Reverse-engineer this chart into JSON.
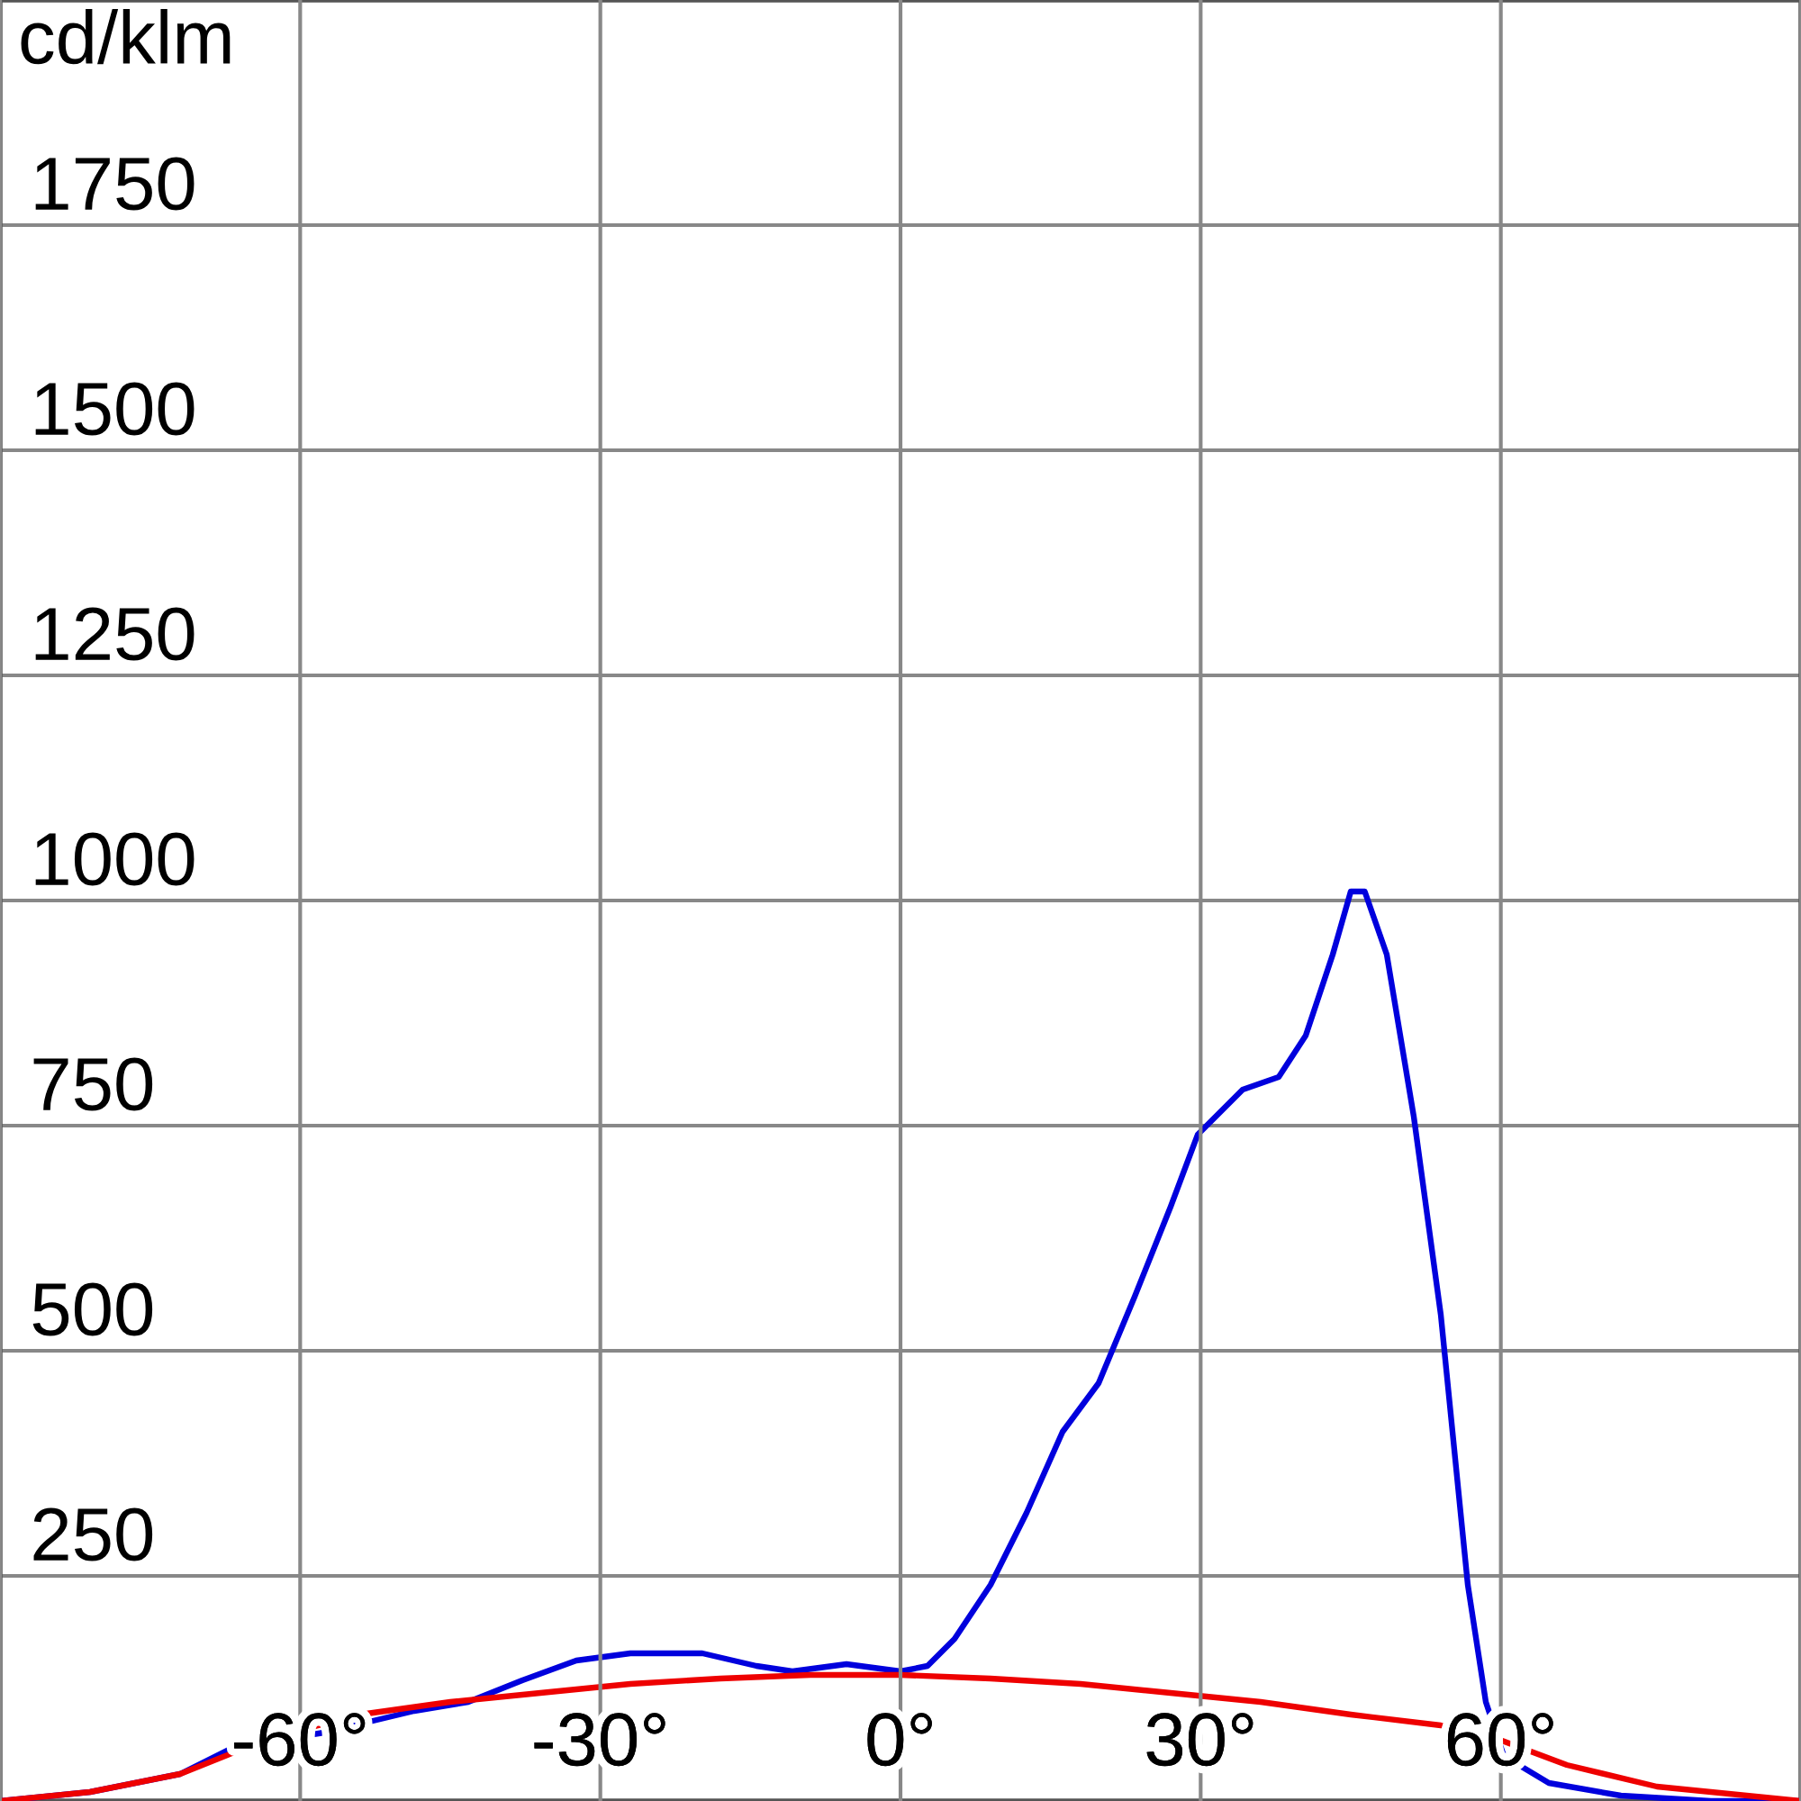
{
  "chart_data": {
    "type": "line",
    "ylabel": "cd/klm",
    "xlim": [
      -90,
      90
    ],
    "ylim": [
      0,
      2000
    ],
    "xticks": [
      {
        "value": -90,
        "label": null
      },
      {
        "value": -60,
        "label": "-60°"
      },
      {
        "value": -30,
        "label": "-30°"
      },
      {
        "value": 0,
        "label": "0°"
      },
      {
        "value": 30,
        "label": "30°"
      },
      {
        "value": 60,
        "label": "60°"
      },
      {
        "value": 90,
        "label": null
      }
    ],
    "yticks": [
      {
        "value": 0,
        "label": null
      },
      250,
      500,
      750,
      1000,
      1250,
      1500,
      1750,
      {
        "value": 2000,
        "label": null
      }
    ],
    "grid": true,
    "legend": false,
    "marker": "none",
    "line_style": "solid",
    "series": [
      {
        "color": "#0000dd",
        "x": [
          -90,
          -81,
          -72,
          -66.6,
          -57.6,
          -48.6,
          -43.2,
          -37.8,
          -32.4,
          -27,
          -19.8,
          -14.4,
          -10.8,
          -5.4,
          0,
          2.7,
          5.4,
          9,
          12.6,
          16.2,
          19.8,
          23.4,
          27,
          29.7,
          34.2,
          37.8,
          40.5,
          43.2,
          45,
          46.4,
          48.6,
          51.3,
          54,
          56.7,
          58.5,
          60.3,
          64.8,
          72,
          81,
          90
        ],
        "values": [
          0,
          10,
          30,
          60,
          76,
          100,
          110,
          134,
          156,
          164,
          164,
          150,
          144,
          152,
          144,
          150,
          180,
          240,
          320,
          410,
          464,
          560,
          660,
          740,
          790,
          804,
          850,
          940,
          1010,
          1010,
          940,
          760,
          540,
          240,
          110,
          50,
          20,
          6,
          0,
          0
        ]
      },
      {
        "color": "#ee0000",
        "x": [
          -90,
          -81,
          -72,
          -63,
          -54,
          -45,
          -36,
          -27,
          -18,
          -9,
          0,
          9,
          18,
          27,
          36,
          45,
          54,
          59.4,
          66.6,
          75.6,
          90
        ],
        "values": [
          0,
          10,
          30,
          70,
          96,
          110,
          120,
          130,
          136,
          140,
          140,
          136,
          130,
          120,
          110,
          96,
          84,
          70,
          40,
          16,
          0
        ]
      }
    ]
  }
}
